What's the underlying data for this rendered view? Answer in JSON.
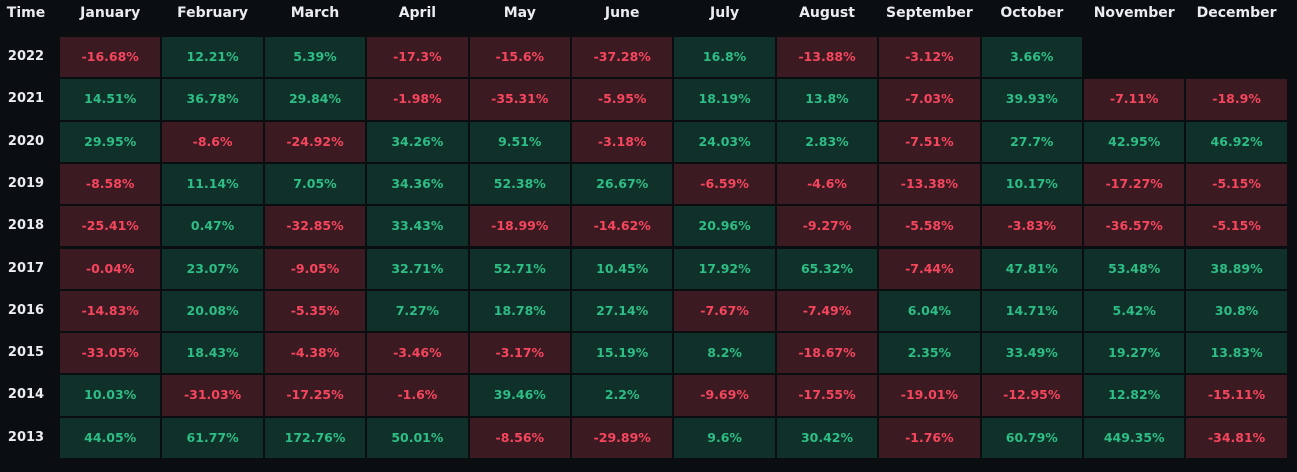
{
  "chart_data": {
    "type": "heatmap",
    "row_header": "Time",
    "columns": [
      "January",
      "February",
      "March",
      "April",
      "May",
      "June",
      "July",
      "August",
      "September",
      "October",
      "November",
      "December"
    ],
    "rows": [
      {
        "year": "2022",
        "values": [
          "-16.68%",
          "12.21%",
          "5.39%",
          "-17.3%",
          "-15.6%",
          "-37.28%",
          "16.8%",
          "-13.88%",
          "-3.12%",
          "3.66%",
          null,
          null
        ]
      },
      {
        "year": "2021",
        "values": [
          "14.51%",
          "36.78%",
          "29.84%",
          "-1.98%",
          "-35.31%",
          "-5.95%",
          "18.19%",
          "13.8%",
          "-7.03%",
          "39.93%",
          "-7.11%",
          "-18.9%"
        ]
      },
      {
        "year": "2020",
        "values": [
          "29.95%",
          "-8.6%",
          "-24.92%",
          "34.26%",
          "9.51%",
          "-3.18%",
          "24.03%",
          "2.83%",
          "-7.51%",
          "27.7%",
          "42.95%",
          "46.92%"
        ]
      },
      {
        "year": "2019",
        "values": [
          "-8.58%",
          "11.14%",
          "7.05%",
          "34.36%",
          "52.38%",
          "26.67%",
          "-6.59%",
          "-4.6%",
          "-13.38%",
          "10.17%",
          "-17.27%",
          "-5.15%"
        ]
      },
      {
        "year": "2018",
        "values": [
          "-25.41%",
          "0.47%",
          "-32.85%",
          "33.43%",
          "-18.99%",
          "-14.62%",
          "20.96%",
          "-9.27%",
          "-5.58%",
          "-3.83%",
          "-36.57%",
          "-5.15%"
        ]
      },
      {
        "year": "2017",
        "values": [
          "-0.04%",
          "23.07%",
          "-9.05%",
          "32.71%",
          "52.71%",
          "10.45%",
          "17.92%",
          "65.32%",
          "-7.44%",
          "47.81%",
          "53.48%",
          "38.89%"
        ]
      },
      {
        "year": "2016",
        "values": [
          "-14.83%",
          "20.08%",
          "-5.35%",
          "7.27%",
          "18.78%",
          "27.14%",
          "-7.67%",
          "-7.49%",
          "6.04%",
          "14.71%",
          "5.42%",
          "30.8%"
        ]
      },
      {
        "year": "2015",
        "values": [
          "-33.05%",
          "18.43%",
          "-4.38%",
          "-3.46%",
          "-3.17%",
          "15.19%",
          "8.2%",
          "-18.67%",
          "2.35%",
          "33.49%",
          "19.27%",
          "13.83%"
        ]
      },
      {
        "year": "2014",
        "values": [
          "10.03%",
          "-31.03%",
          "-17.25%",
          "-1.6%",
          "39.46%",
          "2.2%",
          "-9.69%",
          "-17.55%",
          "-19.01%",
          "-12.95%",
          "12.82%",
          "-15.11%"
        ]
      },
      {
        "year": "2013",
        "values": [
          "44.05%",
          "61.77%",
          "172.76%",
          "50.01%",
          "-8.56%",
          "-29.89%",
          "9.6%",
          "30.42%",
          "-1.76%",
          "60.79%",
          "449.35%",
          "-34.81%"
        ]
      }
    ],
    "colors": {
      "background": "#0b0e11",
      "header_text": "#eaecef",
      "positive_fill": "#0f3129",
      "positive_text": "#2ebd85",
      "negative_fill": "#3b1a22",
      "negative_text": "#f6465d"
    }
  }
}
